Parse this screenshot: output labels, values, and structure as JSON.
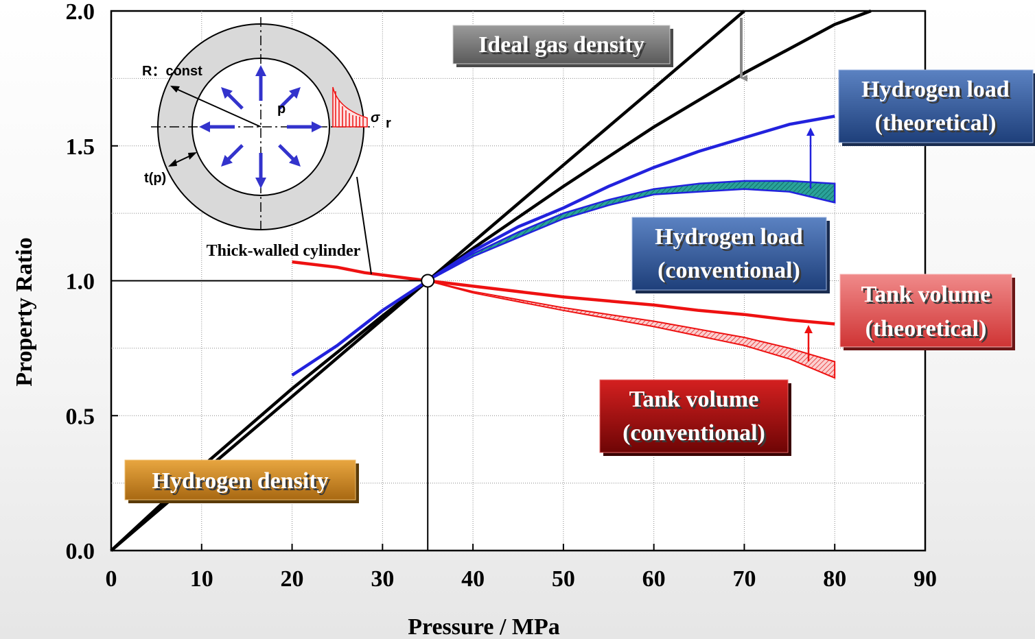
{
  "chart_data": {
    "type": "line",
    "xlabel": "Pressure / MPa",
    "ylabel": "Property Ratio",
    "xlim": [
      0,
      90
    ],
    "ylim": [
      0,
      2.0
    ],
    "x_ticks": [
      "0",
      "10",
      "20",
      "30",
      "40",
      "50",
      "60",
      "70",
      "80",
      "90"
    ],
    "y_ticks": [
      "0.0",
      "0.5",
      "1.0",
      "1.5",
      "2.0"
    ],
    "grid": true,
    "reference_point": {
      "x": 35,
      "y": 1.0
    },
    "series": [
      {
        "name": "Ideal gas density",
        "color": "#000000",
        "points": [
          [
            0,
            0
          ],
          [
            10,
            0.286
          ],
          [
            20,
            0.571
          ],
          [
            35,
            1.0
          ],
          [
            50,
            1.429
          ],
          [
            60,
            1.714
          ],
          [
            70,
            2.0
          ]
        ]
      },
      {
        "name": "Hydrogen density",
        "color": "#000000",
        "points": [
          [
            0,
            0
          ],
          [
            10,
            0.31
          ],
          [
            20,
            0.6
          ],
          [
            30,
            0.87
          ],
          [
            35,
            1.0
          ],
          [
            40,
            1.12
          ],
          [
            50,
            1.35
          ],
          [
            60,
            1.57
          ],
          [
            70,
            1.77
          ],
          [
            80,
            1.95
          ],
          [
            84,
            2.0
          ]
        ]
      },
      {
        "name": "Hydrogen load (theoretical)",
        "color": "#2222dd",
        "points": [
          [
            20,
            0.65
          ],
          [
            25,
            0.76
          ],
          [
            30,
            0.89
          ],
          [
            35,
            1.0
          ],
          [
            40,
            1.11
          ],
          [
            45,
            1.2
          ],
          [
            50,
            1.27
          ],
          [
            55,
            1.35
          ],
          [
            60,
            1.42
          ],
          [
            65,
            1.48
          ],
          [
            70,
            1.53
          ],
          [
            75,
            1.58
          ],
          [
            80,
            1.61
          ]
        ]
      },
      {
        "name": "Hydrogen load (conventional)",
        "color": "#2222dd",
        "upper": [
          [
            35,
            1.0
          ],
          [
            40,
            1.1
          ],
          [
            45,
            1.18
          ],
          [
            50,
            1.25
          ],
          [
            55,
            1.3
          ],
          [
            60,
            1.34
          ],
          [
            65,
            1.36
          ],
          [
            70,
            1.37
          ],
          [
            75,
            1.37
          ],
          [
            80,
            1.36
          ]
        ],
        "lower": [
          [
            35,
            1.0
          ],
          [
            40,
            1.09
          ],
          [
            45,
            1.16
          ],
          [
            50,
            1.23
          ],
          [
            55,
            1.28
          ],
          [
            60,
            1.32
          ],
          [
            65,
            1.33
          ],
          [
            70,
            1.34
          ],
          [
            75,
            1.33
          ],
          [
            80,
            1.29
          ]
        ],
        "fill": "#2aa39a"
      },
      {
        "name": "Tank volume (theoretical)",
        "color": "#ee1111",
        "points": [
          [
            20,
            1.07
          ],
          [
            25,
            1.05
          ],
          [
            28,
            1.03
          ],
          [
            35,
            1.0
          ],
          [
            40,
            0.98
          ],
          [
            50,
            0.94
          ],
          [
            60,
            0.91
          ],
          [
            65,
            0.89
          ],
          [
            70,
            0.875
          ],
          [
            75,
            0.855
          ],
          [
            80,
            0.84
          ]
        ]
      },
      {
        "name": "Tank volume (conventional)",
        "color": "#ee1111",
        "upper": [
          [
            35,
            1.0
          ],
          [
            40,
            0.96
          ],
          [
            50,
            0.9
          ],
          [
            60,
            0.85
          ],
          [
            70,
            0.79
          ],
          [
            75,
            0.75
          ],
          [
            80,
            0.7
          ]
        ],
        "lower": [
          [
            35,
            1.0
          ],
          [
            40,
            0.955
          ],
          [
            50,
            0.89
          ],
          [
            60,
            0.83
          ],
          [
            70,
            0.76
          ],
          [
            75,
            0.71
          ],
          [
            80,
            0.64
          ]
        ],
        "fill": "#f08080"
      }
    ],
    "annotations": {
      "ideal_gas_density": "Ideal gas density",
      "hydrogen_density": "Hydrogen density",
      "h2_load_theoretical": [
        "Hydrogen load",
        "(theoretical)"
      ],
      "h2_load_conventional": [
        "Hydrogen load",
        "(conventional)"
      ],
      "tank_volume_theoretical": [
        "Tank volume",
        "(theoretical)"
      ],
      "tank_volume_conventional": [
        "Tank volume",
        "(conventional)"
      ]
    },
    "inset": {
      "title": "Thick-walled cylinder",
      "radius_label": "R：const",
      "pressure_label": "p",
      "thickness_label": "t(p)",
      "stress_label": "σ",
      "stress_subscript": "r"
    }
  },
  "colors": {
    "ideal_badge": "#7a7a7a",
    "hydrogen_density_badge": "#c8821c",
    "h2_load_badge": "#2f5597",
    "tank_theoretical_badge": "#e05555",
    "tank_conventional_badge": "#a01010",
    "inset_wall": "#d9d9d9",
    "inset_arrows": "#3333cc"
  }
}
